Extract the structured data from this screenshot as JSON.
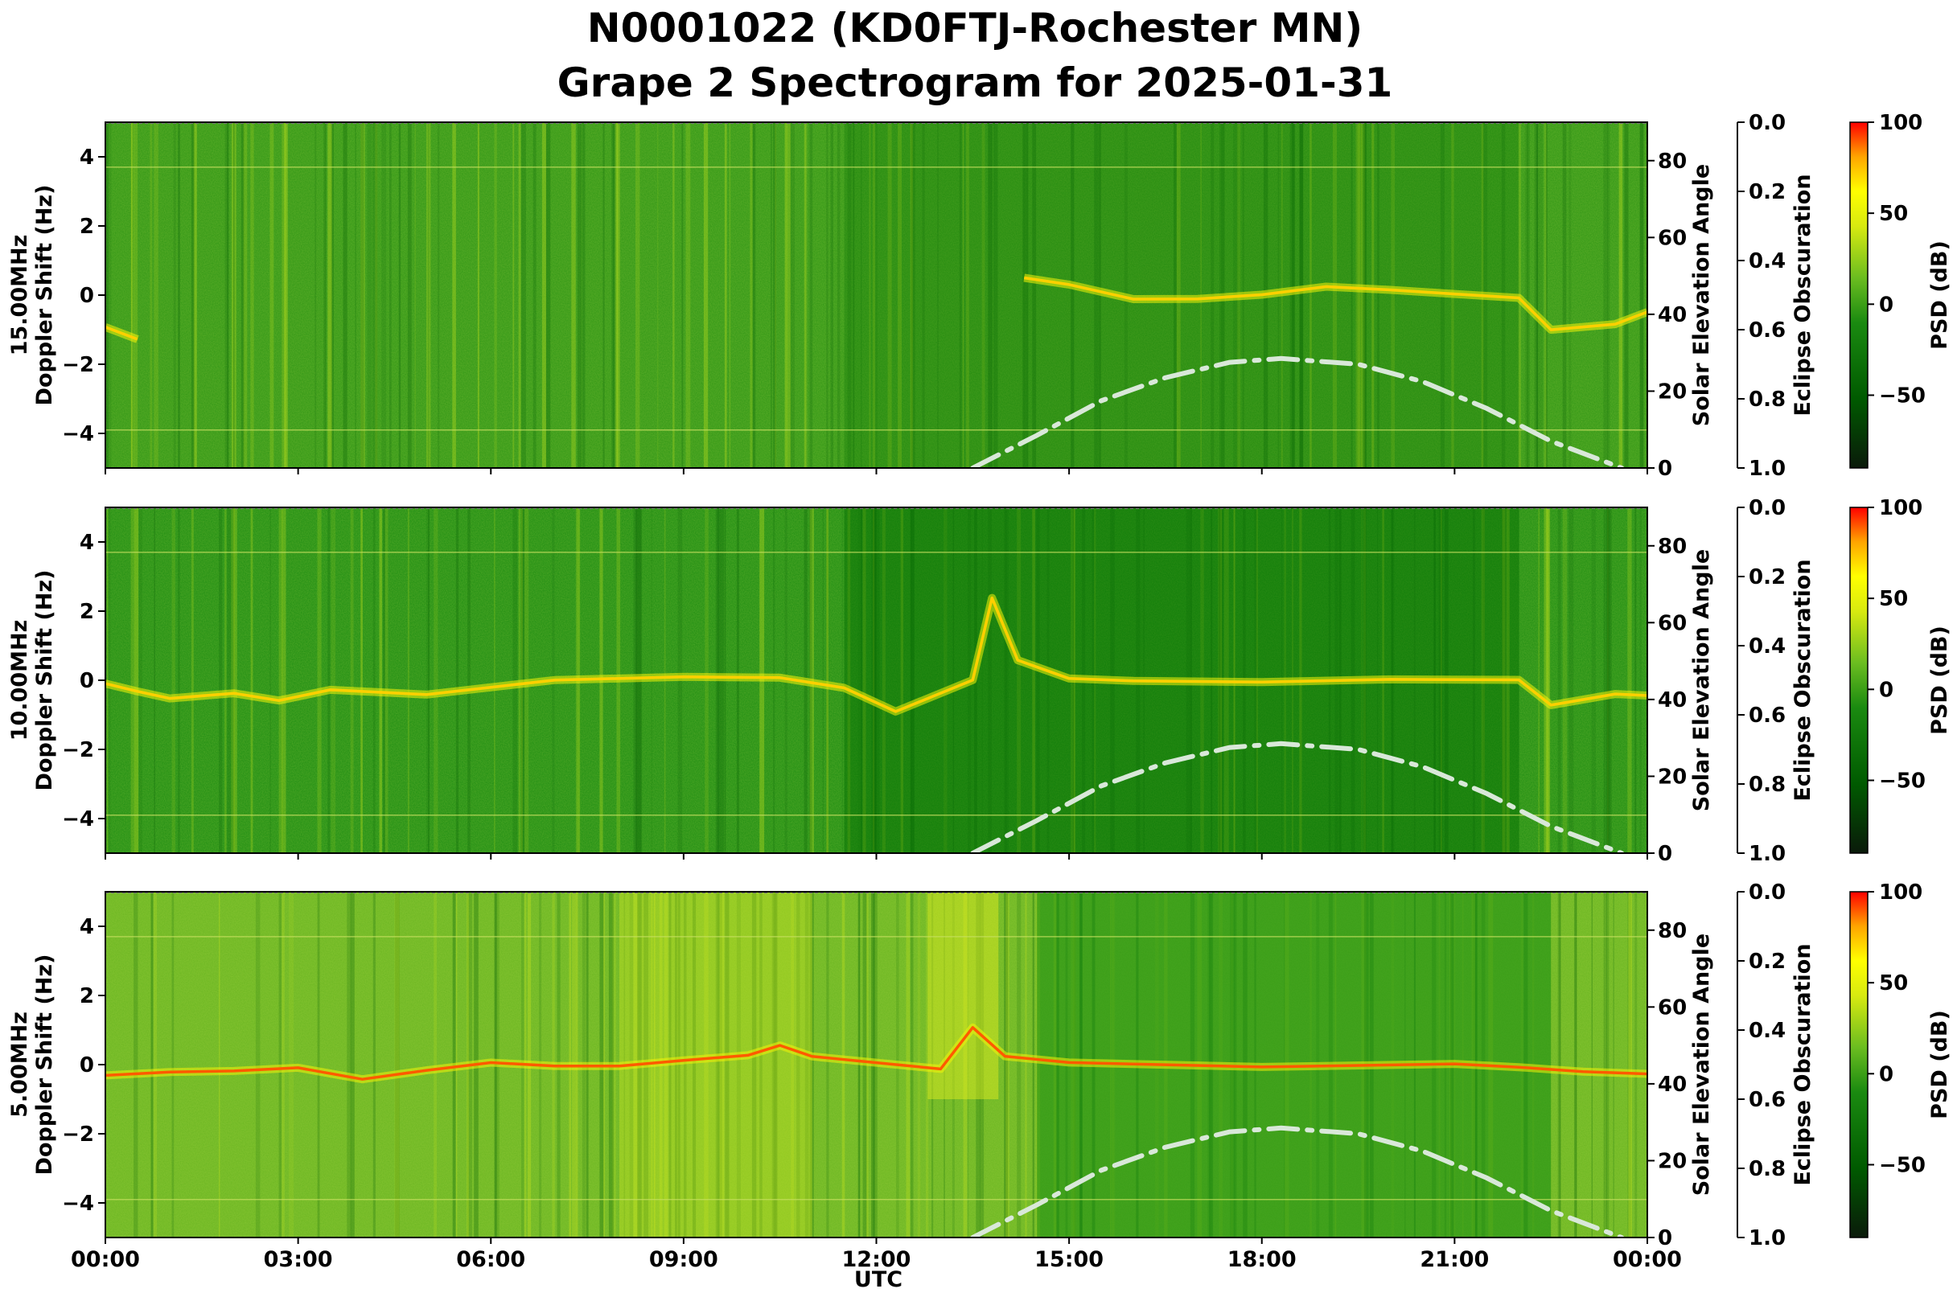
{
  "title_line1": "N0001022 (KD0FTJ-Rochester MN)",
  "title_line2": "Grape 2 Spectrogram for 2025-01-31",
  "colors": {
    "background": "#ffffff",
    "solar_curve": "#d9e8d9",
    "colormap": [
      "#0a1a0a",
      "#006400",
      "#1a8a10",
      "#5fb51f",
      "#c6e01e",
      "#ffff00",
      "#ffa500",
      "#ff0000"
    ]
  },
  "chart_data": [
    {
      "type": "heatmap",
      "name": "15.00MHz",
      "ylabel_line1": "15.00MHz",
      "ylabel_line2": "Doppler Shift (Hz)",
      "ylim": [
        -5,
        5
      ],
      "yticks": [
        "4",
        "2",
        "0",
        "−2",
        "−4"
      ],
      "right_axis": {
        "label": "Solar Elevation Angle",
        "ylim": [
          0,
          90
        ],
        "ticks": [
          "80",
          "60",
          "40",
          "20",
          "0"
        ]
      },
      "eclipse_axis": {
        "label": "Eclipse Obscuration",
        "ylim": [
          1.0,
          0.0
        ],
        "ticks": [
          "0.0",
          "0.2",
          "0.4",
          "0.6",
          "0.8",
          "1.0"
        ]
      },
      "colorbar": {
        "label": "PSD (dB)",
        "range": [
          -90,
          100
        ],
        "ticks": [
          "100",
          "50",
          "0",
          "−50"
        ]
      },
      "solar_elevation": {
        "x_hours": [
          13.5,
          14.5,
          15.5,
          16.5,
          17.5,
          18.3,
          19.5,
          20.5,
          21.5,
          22.5,
          23.6
        ],
        "y_deg": [
          0,
          8.5,
          17.5,
          23.5,
          27.5,
          28.5,
          27,
          22.5,
          15.5,
          7,
          0
        ]
      },
      "doppler_trace": {
        "x_hours": [
          0,
          0.5,
          1,
          3,
          6,
          9,
          12,
          13.5,
          14.3,
          15,
          16,
          17,
          18,
          19,
          20,
          21,
          22,
          22.5,
          23.5,
          24
        ],
        "y_hz": [
          -0.8,
          -1.4,
          null,
          null,
          null,
          null,
          null,
          null,
          0.5,
          0.2,
          -0.1,
          -0.2,
          -0.1,
          0.2,
          0.1,
          0.0,
          -0.2,
          -1.0,
          -0.8,
          -0.6
        ]
      }
    },
    {
      "type": "heatmap",
      "name": "10.00MHz",
      "ylabel_line1": "10.00MHz",
      "ylabel_line2": "Doppler Shift (Hz)",
      "ylim": [
        -5,
        5
      ],
      "yticks": [
        "4",
        "2",
        "0",
        "−2",
        "−4"
      ],
      "right_axis": {
        "label": "Solar Elevation Angle",
        "ylim": [
          0,
          90
        ],
        "ticks": [
          "80",
          "60",
          "40",
          "20",
          "0"
        ]
      },
      "eclipse_axis": {
        "label": "Eclipse Obscuration",
        "ylim": [
          1.0,
          0.0
        ],
        "ticks": [
          "0.0",
          "0.2",
          "0.4",
          "0.6",
          "0.8",
          "1.0"
        ]
      },
      "colorbar": {
        "label": "PSD (dB)",
        "range": [
          -90,
          100
        ],
        "ticks": [
          "100",
          "50",
          "0",
          "−50"
        ]
      },
      "solar_elevation": {
        "x_hours": [
          13.5,
          14.5,
          15.5,
          16.5,
          17.5,
          18.3,
          19.5,
          20.5,
          21.5,
          22.5,
          23.6
        ],
        "y_deg": [
          0,
          8.5,
          17.5,
          23.5,
          27.5,
          28.5,
          27,
          22.5,
          15.5,
          7,
          0
        ]
      },
      "doppler_trace": {
        "x_hours": [
          0,
          0.5,
          1,
          2,
          2.7,
          3.5,
          5,
          7,
          9,
          10.5,
          11.5,
          12.3,
          13.5,
          13.8,
          14.2,
          15,
          16,
          18,
          20,
          22,
          22.5,
          23.5,
          24
        ],
        "y_hz": [
          -0.2,
          -0.4,
          -0.4,
          -0.4,
          -0.6,
          -0.3,
          -0.3,
          0.0,
          0.0,
          0.1,
          -0.3,
          -0.8,
          0.0,
          2.5,
          0.5,
          0.1,
          0.0,
          0.0,
          0.0,
          0.0,
          -0.6,
          -0.4,
          -0.4
        ]
      }
    },
    {
      "type": "heatmap",
      "name": "5.00MHz",
      "ylabel_line1": "5.00MHz",
      "ylabel_line2": "Doppler Shift (Hz)",
      "ylim": [
        -5,
        5
      ],
      "yticks": [
        "4",
        "2",
        "0",
        "−2",
        "−4"
      ],
      "right_axis": {
        "label": "Solar Elevation Angle",
        "ylim": [
          0,
          90
        ],
        "ticks": [
          "80",
          "60",
          "40",
          "20",
          "0"
        ]
      },
      "eclipse_axis": {
        "label": "Eclipse Obscuration",
        "ylim": [
          1.0,
          0.0
        ],
        "ticks": [
          "0.0",
          "0.2",
          "0.4",
          "0.6",
          "0.8",
          "1.0"
        ]
      },
      "colorbar": {
        "label": "PSD (dB)",
        "range": [
          -90,
          100
        ],
        "ticks": [
          "100",
          "50",
          "0",
          "−50"
        ]
      },
      "solar_elevation": {
        "x_hours": [
          13.5,
          14.5,
          15.5,
          16.5,
          17.5,
          18.3,
          19.5,
          20.5,
          21.5,
          22.5,
          23.6
        ],
        "y_deg": [
          0,
          8.5,
          17.5,
          23.5,
          27.5,
          28.5,
          27,
          22.5,
          15.5,
          7,
          0
        ]
      },
      "doppler_trace": {
        "x_hours": [
          0,
          1,
          2,
          3,
          4,
          5,
          6,
          7,
          8,
          9,
          10,
          10.5,
          11,
          12,
          13,
          13.5,
          14,
          15,
          18,
          21,
          22,
          23,
          24
        ],
        "y_hz": [
          -0.2,
          -0.2,
          -0.1,
          -0.2,
          -0.4,
          -0.1,
          0.0,
          -0.1,
          0.0,
          0.0,
          0.2,
          0.5,
          0.3,
          0.0,
          0.0,
          1.0,
          0.3,
          0.0,
          0.0,
          0.0,
          -0.1,
          -0.2,
          -0.2
        ]
      }
    }
  ],
  "x_axis": {
    "label": "UTC",
    "xlim": [
      0,
      24
    ],
    "ticks": [
      "00:00",
      "03:00",
      "06:00",
      "09:00",
      "12:00",
      "15:00",
      "18:00",
      "21:00",
      "00:00"
    ]
  }
}
